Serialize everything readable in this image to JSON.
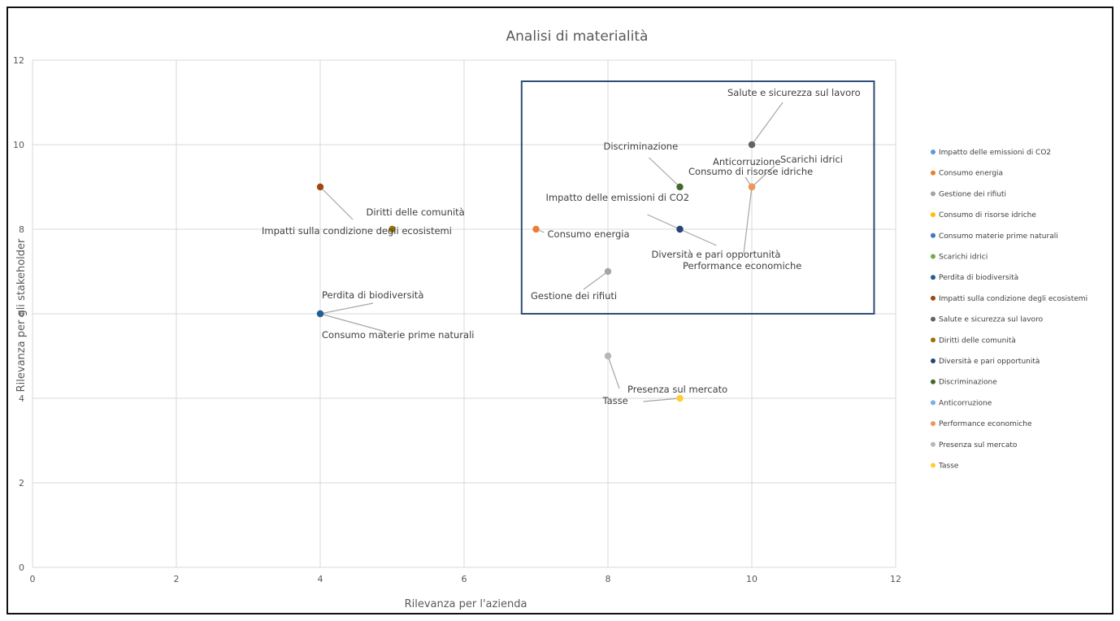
{
  "chart_data": {
    "type": "scatter",
    "title": "Analisi di materialità",
    "xlabel": "Rilevanza per l'azienda",
    "ylabel": "Rilevanza per gli stakeholder",
    "xlim": [
      0,
      12
    ],
    "ylim": [
      0,
      12
    ],
    "xticks": [
      "0",
      "2",
      "4",
      "6",
      "8",
      "10",
      "12"
    ],
    "yticks": [
      "0",
      "2",
      "4",
      "6",
      "8",
      "10",
      "12"
    ],
    "grid": true,
    "legend_position": "right",
    "highlight_box": {
      "x_range": [
        6.8,
        11.7
      ],
      "y_range": [
        6,
        11.5
      ],
      "color": "#2e4d7b"
    },
    "series": [
      {
        "name": "Impatto delle emissioni di CO2",
        "x": 9,
        "y": 8,
        "color": "#5b9bd5",
        "label": "Impatto delle emissioni di CO2"
      },
      {
        "name": "Consumo energia",
        "x": 7,
        "y": 8,
        "color": "#ed7d31",
        "label": "Consumo energia"
      },
      {
        "name": "Gestione dei rifiuti",
        "x": 8,
        "y": 7,
        "color": "#a5a5a5",
        "label": "Gestione dei rifiuti"
      },
      {
        "name": "Consumo di risorse idriche",
        "x": 10,
        "y": 9,
        "color": "#ffc000",
        "label": "Consumo di risorse idriche"
      },
      {
        "name": "Consumo materie prime naturali",
        "x": 4,
        "y": 6,
        "color": "#4472c4",
        "label": "Consumo materie prime naturali"
      },
      {
        "name": "Scarichi idrici",
        "x": 10,
        "y": 9,
        "color": "#70ad47",
        "label": "Scarichi idrici"
      },
      {
        "name": "Perdita di biodiversità",
        "x": 4,
        "y": 6,
        "color": "#255e91",
        "label": "Perdita di biodiversità"
      },
      {
        "name": "Impatti sulla condizione degli ecosistemi",
        "x": 4,
        "y": 9,
        "color": "#9e480e",
        "label": "Impatti sulla condizione degli ecosistemi"
      },
      {
        "name": "Salute e sicurezza sul lavoro",
        "x": 10,
        "y": 10,
        "color": "#636363",
        "label": "Salute e sicurezza sul lavoro"
      },
      {
        "name": "Diritti delle comunità",
        "x": 5,
        "y": 8,
        "color": "#997300",
        "label": "Diritti delle comunità"
      },
      {
        "name": "Diversità e pari opportunità",
        "x": 9,
        "y": 8,
        "color": "#264478",
        "label": "Diversità e pari opportunità"
      },
      {
        "name": "Discriminazione",
        "x": 9,
        "y": 9,
        "color": "#43682b",
        "label": "Discriminazione"
      },
      {
        "name": "Anticorruzione",
        "x": 10,
        "y": 9,
        "color": "#7cafdd",
        "label": "Anticorruzione"
      },
      {
        "name": "Performance economiche",
        "x": 10,
        "y": 9,
        "color": "#f1975a",
        "label": "Performance economiche"
      },
      {
        "name": "Presenza sul mercato",
        "x": 8,
        "y": 5,
        "color": "#b7b7b7",
        "label": "Presenza sul mercato"
      },
      {
        "name": "Tasse",
        "x": 9,
        "y": 4,
        "color": "#ffcd33",
        "label": "Tasse"
      }
    ]
  }
}
